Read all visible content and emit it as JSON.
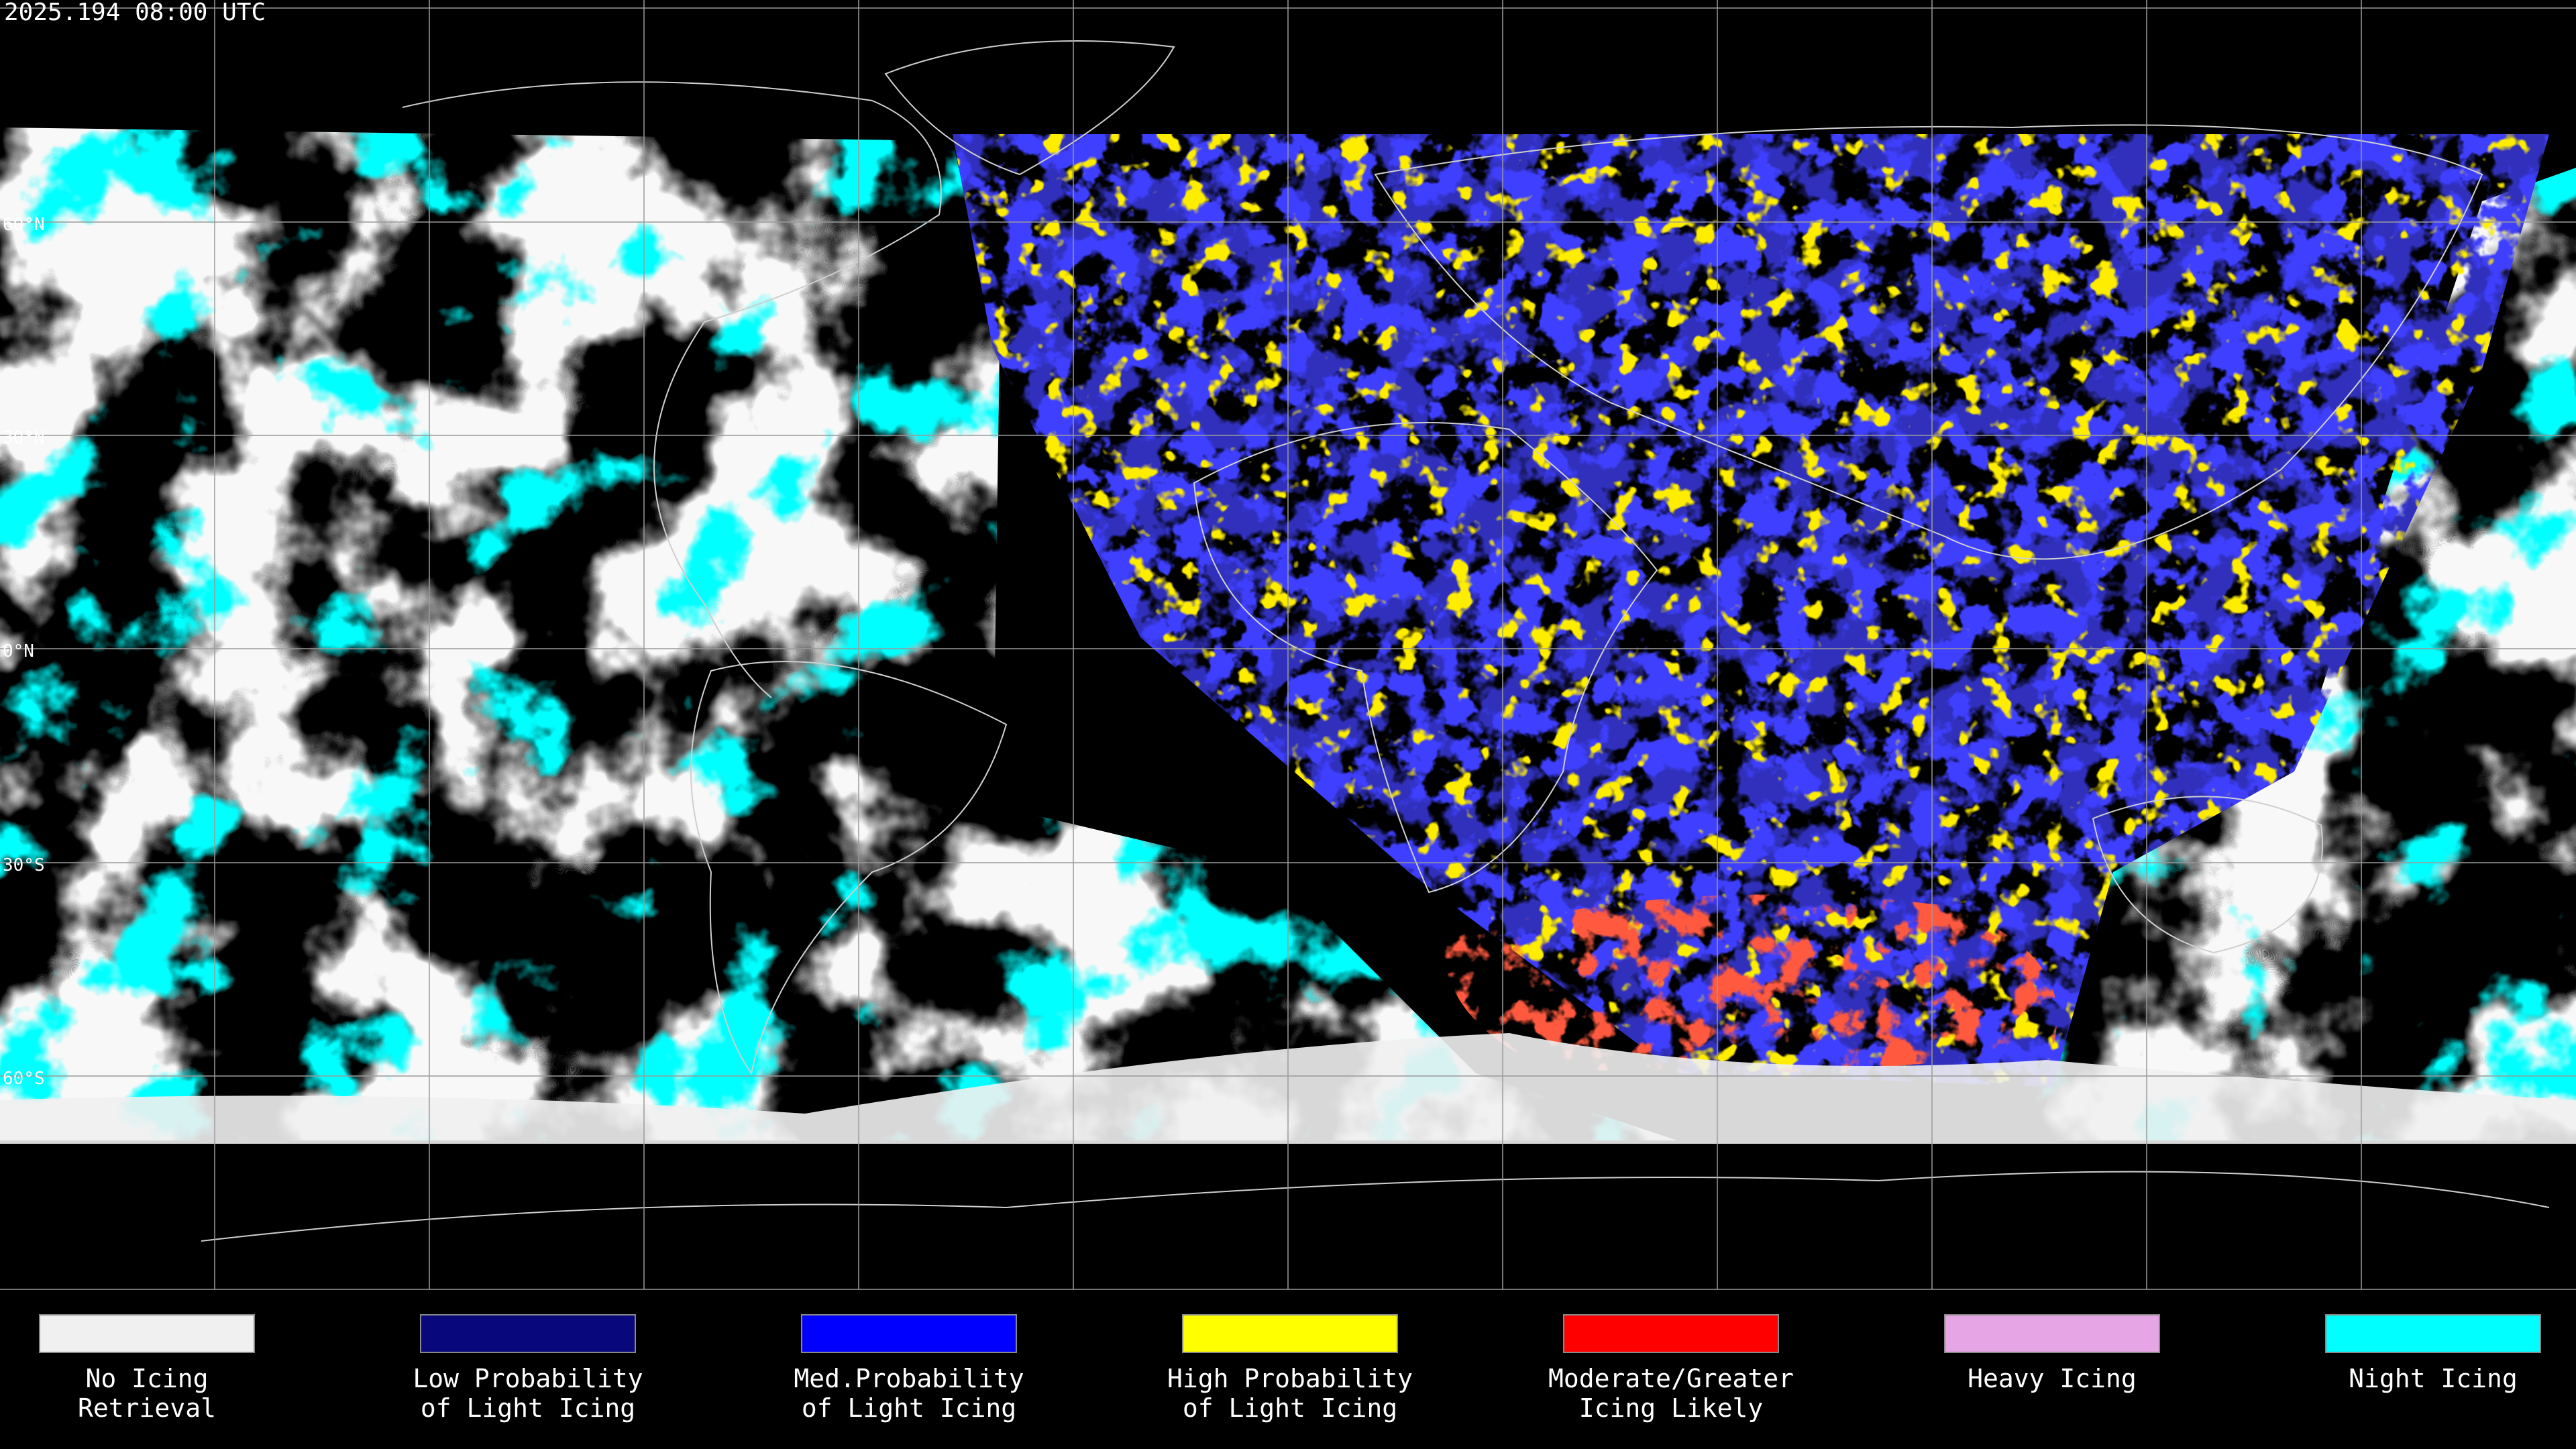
{
  "header": {
    "timestamp": "2025.194 08:00 UTC"
  },
  "lat_labels": [
    "60°N",
    "30°N",
    "0°N",
    "30°S",
    "60°S"
  ],
  "legend": [
    {
      "lines": [
        "No Icing",
        "Retrieval"
      ],
      "color": "#f0f0f0"
    },
    {
      "lines": [
        "Low Probability",
        "of Light Icing"
      ],
      "color": "#08087c"
    },
    {
      "lines": [
        "Med.Probability",
        "of Light Icing"
      ],
      "color": "#0000ff"
    },
    {
      "lines": [
        "High Probability",
        "of Light Icing"
      ],
      "color": "#ffff00"
    },
    {
      "lines": [
        "Moderate/Greater",
        "Icing Likely"
      ],
      "color": "#ff0000"
    },
    {
      "lines": [
        "Heavy Icing"
      ],
      "color": "#e6a6e6"
    },
    {
      "lines": [
        "Night Icing"
      ],
      "color": "#00ffff"
    }
  ]
}
